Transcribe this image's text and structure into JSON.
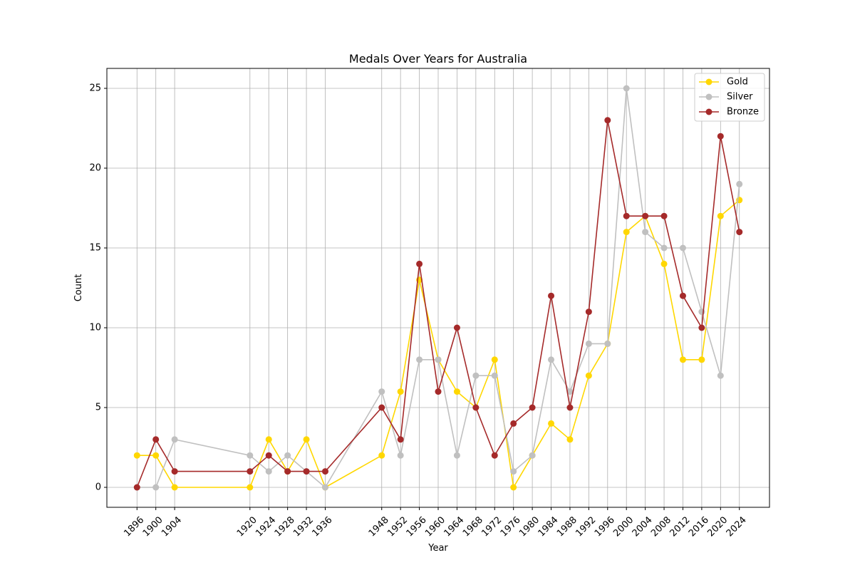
{
  "chart_data": {
    "type": "line",
    "title": "Medals Over Years for Australia",
    "xlabel": "Year",
    "ylabel": "Count",
    "x": [
      1896,
      1900,
      1904,
      1920,
      1924,
      1928,
      1932,
      1936,
      1948,
      1952,
      1956,
      1960,
      1964,
      1968,
      1972,
      1976,
      1980,
      1984,
      1988,
      1992,
      1996,
      2000,
      2004,
      2008,
      2012,
      2016,
      2020,
      2024
    ],
    "x_tick_labels": [
      "1896",
      "1900",
      "1904",
      "1920",
      "1924",
      "1928",
      "1932",
      "1936",
      "1948",
      "1952",
      "1956",
      "1960",
      "1964",
      "1968",
      "1972",
      "1976",
      "1980",
      "1984",
      "1988",
      "1992",
      "1996",
      "2000",
      "2004",
      "2008",
      "2012",
      "2016",
      "2020",
      "2024"
    ],
    "y_ticks": [
      0,
      5,
      10,
      15,
      20,
      25
    ],
    "y_tick_labels": [
      "0",
      "5",
      "10",
      "15",
      "20",
      "25"
    ],
    "xlim": [
      1889.6,
      2030.4
    ],
    "ylim": [
      -1.25,
      26.25
    ],
    "grid": true,
    "legend_position": "top-right",
    "series": [
      {
        "name": "Gold",
        "color": "#FFD700",
        "values": [
          2,
          2,
          0,
          0,
          3,
          1,
          3,
          0,
          2,
          6,
          13,
          8,
          6,
          5,
          8,
          0,
          2,
          4,
          3,
          7,
          9,
          16,
          17,
          14,
          8,
          8,
          17,
          18
        ]
      },
      {
        "name": "Silver",
        "color": "#C0C0C0",
        "values": [
          0,
          0,
          3,
          2,
          1,
          2,
          1,
          0,
          6,
          2,
          8,
          8,
          2,
          7,
          7,
          1,
          2,
          8,
          6,
          9,
          9,
          25,
          16,
          15,
          15,
          11,
          7,
          19
        ]
      },
      {
        "name": "Bronze",
        "color": "#A52A2A",
        "values": [
          0,
          3,
          1,
          1,
          2,
          1,
          1,
          1,
          5,
          3,
          14,
          6,
          10,
          5,
          2,
          4,
          5,
          12,
          5,
          11,
          23,
          17,
          17,
          17,
          12,
          10,
          22,
          16
        ]
      }
    ]
  }
}
